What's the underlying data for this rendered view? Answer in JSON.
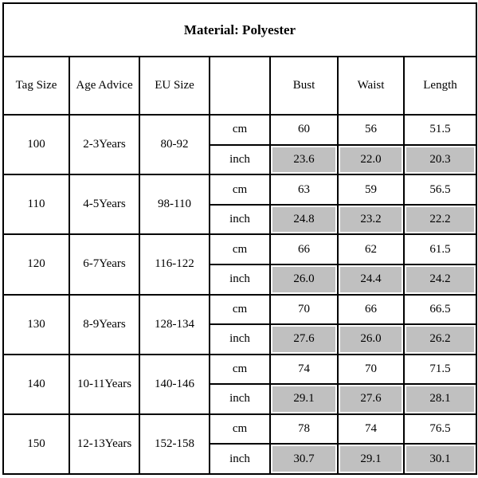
{
  "title": "Material: Polyester",
  "headers": [
    "Tag Size",
    "Age Advice",
    "EU Size",
    "",
    "Bust",
    "Waist",
    "Length"
  ],
  "units": {
    "cm": "cm",
    "inch": "inch"
  },
  "colors": {
    "inch_cell_bg": "#c0c0c0"
  },
  "rows": [
    {
      "tag": "100",
      "age": "2-3Years",
      "eu": "80-92",
      "cm": [
        "60",
        "56",
        "51.5"
      ],
      "inch": [
        "23.6",
        "22.0",
        "20.3"
      ]
    },
    {
      "tag": "110",
      "age": "4-5Years",
      "eu": "98-110",
      "cm": [
        "63",
        "59",
        "56.5"
      ],
      "inch": [
        "24.8",
        "23.2",
        "22.2"
      ]
    },
    {
      "tag": "120",
      "age": "6-7Years",
      "eu": "116-122",
      "cm": [
        "66",
        "62",
        "61.5"
      ],
      "inch": [
        "26.0",
        "24.4",
        "24.2"
      ]
    },
    {
      "tag": "130",
      "age": "8-9Years",
      "eu": "128-134",
      "cm": [
        "70",
        "66",
        "66.5"
      ],
      "inch": [
        "27.6",
        "26.0",
        "26.2"
      ]
    },
    {
      "tag": "140",
      "age": "10-11Years",
      "eu": "140-146",
      "cm": [
        "74",
        "70",
        "71.5"
      ],
      "inch": [
        "29.1",
        "27.6",
        "28.1"
      ]
    },
    {
      "tag": "150",
      "age": "12-13Years",
      "eu": "152-158",
      "cm": [
        "78",
        "74",
        "76.5"
      ],
      "inch": [
        "30.7",
        "29.1",
        "30.1"
      ]
    }
  ]
}
